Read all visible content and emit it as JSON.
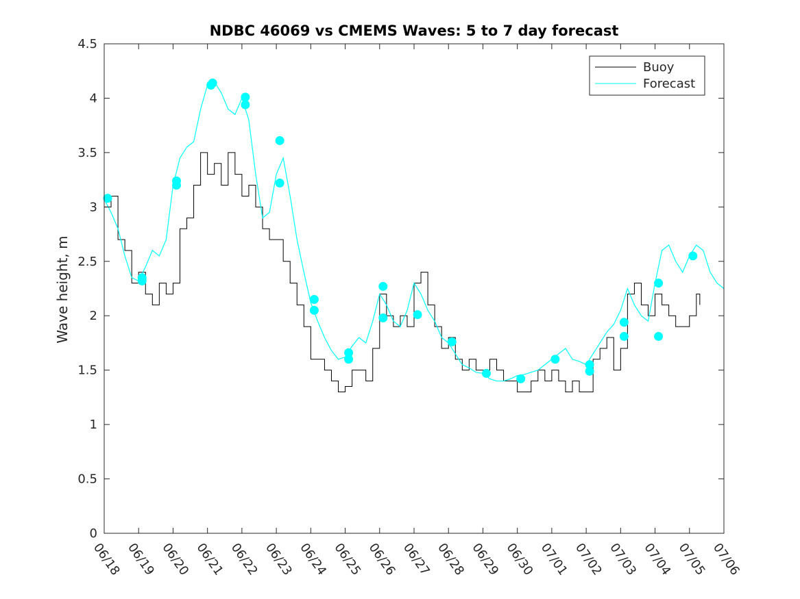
{
  "chart_data": {
    "type": "line",
    "title": "NDBC 46069 vs CMEMS Waves: 5 to 7 day forecast",
    "xlabel": "",
    "ylabel": "Wave height, m",
    "xlim": [
      0,
      18
    ],
    "ylim": [
      0,
      4.5
    ],
    "x_tick_labels": [
      "06/18",
      "06/19",
      "06/20",
      "06/21",
      "06/22",
      "06/23",
      "06/24",
      "06/25",
      "06/26",
      "06/27",
      "06/28",
      "06/29",
      "06/30",
      "07/01",
      "07/02",
      "07/03",
      "07/04",
      "07/05",
      "07/06"
    ],
    "y_ticks": [
      0,
      0.5,
      1,
      1.5,
      2,
      2.5,
      3,
      3.5,
      4,
      4.5
    ],
    "legend_position": "top-right",
    "colors": {
      "buoy": "#000000",
      "forecast": "#00ffff"
    },
    "series": [
      {
        "name": "Buoy",
        "x": [
          0,
          0.2,
          0.4,
          0.6,
          0.8,
          1.0,
          1.2,
          1.4,
          1.6,
          1.8,
          2.0,
          2.2,
          2.4,
          2.6,
          2.8,
          3.0,
          3.2,
          3.4,
          3.6,
          3.8,
          4.0,
          4.2,
          4.4,
          4.6,
          4.8,
          5.0,
          5.2,
          5.4,
          5.6,
          5.8,
          6.0,
          6.2,
          6.4,
          6.6,
          6.8,
          7.0,
          7.2,
          7.4,
          7.6,
          7.8,
          8.0,
          8.2,
          8.4,
          8.6,
          8.8,
          9.0,
          9.2,
          9.4,
          9.6,
          9.8,
          10.0,
          10.2,
          10.4,
          10.6,
          10.8,
          11.0,
          11.2,
          11.4,
          11.6,
          11.8,
          12.0,
          12.2,
          12.4,
          12.6,
          12.8,
          13.0,
          13.2,
          13.4,
          13.6,
          13.8,
          14.0,
          14.2,
          14.4,
          14.6,
          14.8,
          15.0,
          15.2,
          15.4,
          15.6,
          15.8,
          16.0,
          16.2,
          16.4,
          16.6,
          16.8,
          17.0,
          17.2,
          17.3
        ],
        "values": [
          3.0,
          3.1,
          2.7,
          2.6,
          2.3,
          2.4,
          2.2,
          2.1,
          2.3,
          2.2,
          2.3,
          2.8,
          2.9,
          3.2,
          3.5,
          3.3,
          3.4,
          3.2,
          3.5,
          3.3,
          3.1,
          3.2,
          3.0,
          2.8,
          2.7,
          2.7,
          2.5,
          2.3,
          2.1,
          1.9,
          1.6,
          1.6,
          1.5,
          1.4,
          1.3,
          1.35,
          1.5,
          1.5,
          1.4,
          1.7,
          2.2,
          2.0,
          1.9,
          2.0,
          1.9,
          2.3,
          2.4,
          2.1,
          1.9,
          1.7,
          1.8,
          1.6,
          1.5,
          1.6,
          1.5,
          1.5,
          1.6,
          1.5,
          1.4,
          1.4,
          1.3,
          1.3,
          1.4,
          1.5,
          1.4,
          1.5,
          1.4,
          1.3,
          1.4,
          1.3,
          1.3,
          1.6,
          1.7,
          1.8,
          1.5,
          1.7,
          2.2,
          2.3,
          2.1,
          2.0,
          2.2,
          2.1,
          2.0,
          1.9,
          1.9,
          2.0,
          2.2,
          2.1
        ]
      },
      {
        "name": "Forecast",
        "x": [
          0,
          0.2,
          0.4,
          0.6,
          0.8,
          1.0,
          1.2,
          1.4,
          1.6,
          1.8,
          2.0,
          2.2,
          2.4,
          2.6,
          2.8,
          3.0,
          3.2,
          3.4,
          3.6,
          3.8,
          4.0,
          4.2,
          4.4,
          4.6,
          4.8,
          5.0,
          5.2,
          5.4,
          5.6,
          5.8,
          6.0,
          6.2,
          6.4,
          6.6,
          6.8,
          7.0,
          7.2,
          7.4,
          7.6,
          7.8,
          8.0,
          8.2,
          8.4,
          8.6,
          8.8,
          9.0,
          9.2,
          9.4,
          9.6,
          9.8,
          10.0,
          10.2,
          10.4,
          10.6,
          10.8,
          11.0,
          11.2,
          11.4,
          11.6,
          11.8,
          12.0,
          12.2,
          12.4,
          12.6,
          12.8,
          13.0,
          13.2,
          13.4,
          13.6,
          13.8,
          14.0,
          14.2,
          14.4,
          14.6,
          14.8,
          15.0,
          15.2,
          15.4,
          15.6,
          15.8,
          16.0,
          16.2,
          16.4,
          16.6,
          16.8,
          17.0,
          17.2,
          17.4,
          17.6,
          17.8,
          18.0
        ],
        "values": [
          3.07,
          2.95,
          2.8,
          2.55,
          2.35,
          2.32,
          2.45,
          2.6,
          2.55,
          2.7,
          3.2,
          3.45,
          3.55,
          3.6,
          3.9,
          4.12,
          4.15,
          4.05,
          3.9,
          3.85,
          4.0,
          3.8,
          3.3,
          2.9,
          2.95,
          3.3,
          3.45,
          3.1,
          2.7,
          2.4,
          2.12,
          1.95,
          1.8,
          1.68,
          1.6,
          1.62,
          1.72,
          1.8,
          1.75,
          1.95,
          2.2,
          2.1,
          1.95,
          1.9,
          2.05,
          2.3,
          2.2,
          2.05,
          1.95,
          1.8,
          1.75,
          1.65,
          1.55,
          1.52,
          1.48,
          1.47,
          1.42,
          1.4,
          1.4,
          1.42,
          1.45,
          1.46,
          1.48,
          1.5,
          1.55,
          1.6,
          1.65,
          1.7,
          1.6,
          1.58,
          1.55,
          1.65,
          1.75,
          1.85,
          1.92,
          2.05,
          2.25,
          2.1,
          2.0,
          1.95,
          2.3,
          2.6,
          2.65,
          2.5,
          2.4,
          2.55,
          2.65,
          2.6,
          2.4,
          2.3,
          2.25
        ]
      }
    ],
    "forecast_markers": {
      "x": [
        0.1,
        1.1,
        1.1,
        2.1,
        2.1,
        3.1,
        3.15,
        4.1,
        4.1,
        5.1,
        5.1,
        6.1,
        6.1,
        7.1,
        7.1,
        8.1,
        8.1,
        9.1,
        10.1,
        11.1,
        12.1,
        13.1,
        14.1,
        14.1,
        15.1,
        15.1,
        16.1,
        16.1,
        17.1
      ],
      "values": [
        3.08,
        2.35,
        2.32,
        3.24,
        3.2,
        4.12,
        4.14,
        4.01,
        3.94,
        3.61,
        3.22,
        2.15,
        2.05,
        1.66,
        1.6,
        2.27,
        1.98,
        2.01,
        1.76,
        1.47,
        1.42,
        1.6,
        1.55,
        1.49,
        1.94,
        1.81,
        2.3,
        1.81,
        2.55
      ]
    },
    "grid": false
  }
}
